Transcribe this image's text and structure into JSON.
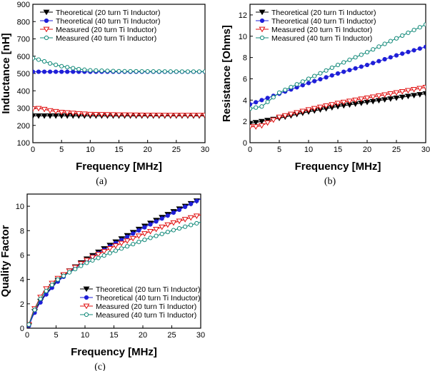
{
  "chart_data": [
    {
      "panel": "a",
      "type": "line",
      "caption": "(a)",
      "xlabel": "Frequency [MHz]",
      "ylabel": "Inductance [nH]",
      "xlim": [
        0,
        30
      ],
      "ylim": [
        100,
        900
      ],
      "xticks": [
        "0",
        "5",
        "10",
        "15",
        "20",
        "25",
        "30"
      ],
      "yticks": [
        "100",
        "200",
        "300",
        "400",
        "500",
        "600",
        "700",
        "800",
        "900"
      ],
      "legend": "top-left",
      "series": [
        {
          "name": "Theoretical (20 turn Ti Inductor)",
          "color": "#000000",
          "marker": "triangle-down-filled",
          "x": [
            0,
            5,
            10,
            15,
            20,
            25,
            30
          ],
          "y": [
            255,
            255,
            255,
            255,
            255,
            255,
            255
          ]
        },
        {
          "name": "Theoretical (40 turn Ti Inductor)",
          "color": "#1f1fd8",
          "marker": "circle-filled",
          "x": [
            0,
            5,
            10,
            15,
            20,
            25,
            30
          ],
          "y": [
            510,
            510,
            510,
            510,
            510,
            510,
            510
          ]
        },
        {
          "name": "Measured (20 turn Ti Inductor)",
          "color": "#e01010",
          "marker": "triangle-down-open",
          "x": [
            0,
            1,
            2,
            3,
            5,
            8,
            10,
            15,
            20,
            25,
            30
          ],
          "y": [
            296,
            298,
            293,
            285,
            276,
            268,
            264,
            261,
            259,
            258,
            258
          ]
        },
        {
          "name": "Measured (40 turn Ti Inductor)",
          "color": "#138a7a",
          "marker": "circle-open",
          "x": [
            0,
            1,
            2,
            3,
            5,
            8,
            10,
            15,
            20,
            25,
            30
          ],
          "y": [
            588,
            580,
            570,
            558,
            542,
            525,
            518,
            513,
            512,
            511,
            511
          ]
        }
      ]
    },
    {
      "panel": "b",
      "type": "line",
      "caption": "(b)",
      "xlabel": "Frequency [MHz]",
      "ylabel": "Resistance [Ohms]",
      "xlim": [
        0,
        30
      ],
      "ylim": [
        0,
        13
      ],
      "xticks": [
        "0",
        "5",
        "10",
        "15",
        "20",
        "25",
        "30"
      ],
      "yticks": [
        "0",
        "2",
        "4",
        "6",
        "8",
        "10",
        "12"
      ],
      "legend": "top-left",
      "series": [
        {
          "name": "Theoretical (20 turn Ti Inductor)",
          "color": "#000000",
          "marker": "triangle-down-filled",
          "x": [
            0,
            5,
            10,
            15,
            20,
            25,
            30
          ],
          "y": [
            1.8,
            2.3,
            2.9,
            3.4,
            3.8,
            4.2,
            4.6
          ]
        },
        {
          "name": "Theoretical (40 turn Ti Inductor)",
          "color": "#1f1fd8",
          "marker": "circle-filled",
          "x": [
            0,
            5,
            10,
            15,
            20,
            25,
            30
          ],
          "y": [
            3.6,
            4.6,
            5.6,
            6.5,
            7.3,
            8.2,
            9.0
          ]
        },
        {
          "name": "Measured (20 turn Ti Inductor)",
          "color": "#e01010",
          "marker": "triangle-down-open",
          "x": [
            0,
            1,
            2,
            5,
            10,
            15,
            20,
            25,
            30
          ],
          "y": [
            1.5,
            1.5,
            1.6,
            2.4,
            3.1,
            3.7,
            4.2,
            4.7,
            5.2
          ]
        },
        {
          "name": "Measured (40 turn Ti Inductor)",
          "color": "#138a7a",
          "marker": "circle-open",
          "x": [
            0,
            1,
            2,
            5,
            10,
            15,
            20,
            25,
            30
          ],
          "y": [
            3.2,
            3.3,
            3.4,
            4.7,
            6.0,
            7.3,
            8.5,
            9.8,
            11.1
          ]
        }
      ]
    },
    {
      "panel": "c",
      "type": "line",
      "caption": "(c)",
      "xlabel": "Frequency [MHz]",
      "ylabel": "Quality Factor",
      "xlim": [
        0,
        30
      ],
      "ylim": [
        0,
        11
      ],
      "xticks": [
        "0",
        "5",
        "10",
        "15",
        "20",
        "25",
        "30"
      ],
      "yticks": [
        "0",
        "2",
        "4",
        "6",
        "8",
        "10"
      ],
      "legend": "bottom-right",
      "series": [
        {
          "name": "Theoretical (20 turn Ti Inductor)",
          "color": "#000000",
          "marker": "triangle-down-filled",
          "x": [
            0.3,
            1,
            2,
            3,
            5,
            7,
            10,
            15,
            20,
            25,
            30
          ],
          "y": [
            0.2,
            1.1,
            2.0,
            2.7,
            3.8,
            4.6,
            5.6,
            7.0,
            8.3,
            9.5,
            10.6
          ]
        },
        {
          "name": "Theoretical (40 turn Ti Inductor)",
          "color": "#1f1fd8",
          "marker": "circle-filled",
          "x": [
            0.3,
            1,
            2,
            3,
            5,
            7,
            10,
            15,
            20,
            25,
            30
          ],
          "y": [
            0.2,
            1.0,
            1.9,
            2.6,
            3.7,
            4.5,
            5.5,
            6.9,
            8.2,
            9.4,
            10.6
          ]
        },
        {
          "name": "Measured (20 turn Ti Inductor)",
          "color": "#e01010",
          "marker": "triangle-down-open",
          "x": [
            0.3,
            1,
            2,
            3,
            5,
            7,
            10,
            15,
            20,
            25,
            30
          ],
          "y": [
            0.3,
            1.3,
            2.3,
            3.1,
            4.0,
            4.6,
            5.5,
            6.7,
            7.7,
            8.6,
            9.3
          ]
        },
        {
          "name": "Measured (40 turn Ti Inductor)",
          "color": "#138a7a",
          "marker": "circle-open",
          "x": [
            0.3,
            1,
            2,
            3,
            5,
            7,
            10,
            15,
            20,
            25,
            30
          ],
          "y": [
            0.3,
            1.2,
            2.2,
            2.9,
            3.9,
            4.5,
            5.3,
            6.3,
            7.2,
            8.0,
            8.7
          ]
        }
      ]
    }
  ]
}
